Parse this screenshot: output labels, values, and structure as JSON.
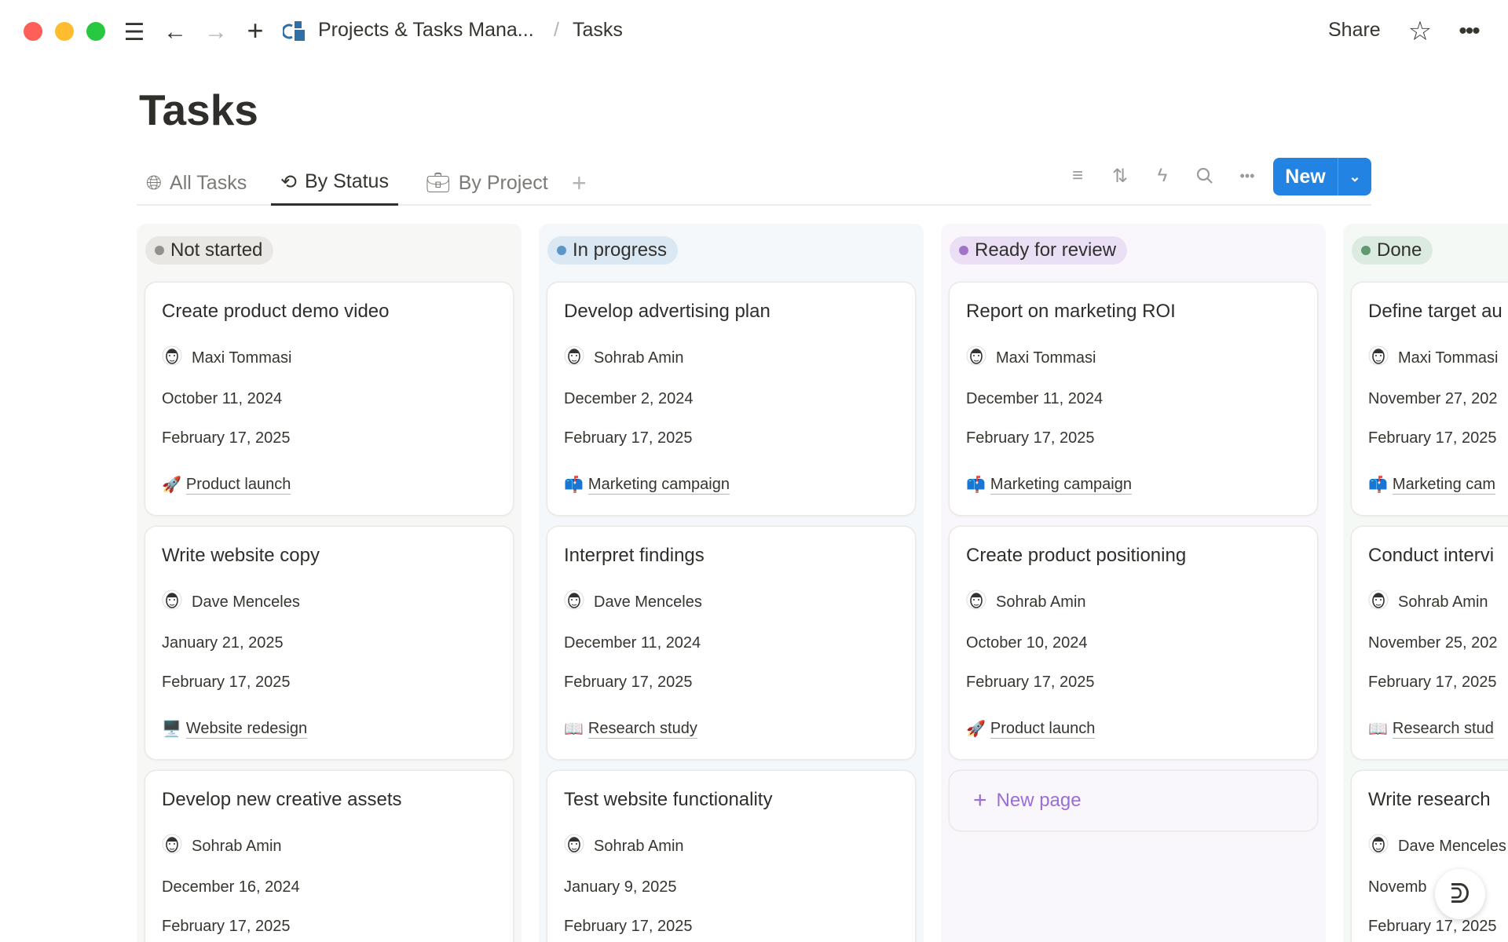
{
  "window": {
    "traffic_colors": [
      "#fe5f57",
      "#febc2e",
      "#28c840"
    ]
  },
  "breadcrumb": {
    "parent": "Projects & Tasks Mana...",
    "separator": "/",
    "current": "Tasks"
  },
  "header_actions": {
    "share": "Share"
  },
  "page": {
    "title": "Tasks"
  },
  "tabs": [
    {
      "label": "All Tasks",
      "icon": "globe-icon"
    },
    {
      "label": "By Status",
      "icon": "status-icon",
      "active": true
    },
    {
      "label": "By Project",
      "icon": "briefcase-icon"
    }
  ],
  "toolbar": {
    "new_label": "New",
    "accent": "#2383e2"
  },
  "columns": [
    {
      "status": "Not started",
      "bg": "#f7f7f5",
      "pill": "#e8e7e4",
      "dot": "#91918e",
      "cards": [
        {
          "title": "Create product demo video",
          "assignee": "Maxi Tommasi",
          "start": "October 11, 2024",
          "end": "February 17, 2025",
          "project_emoji": "🚀",
          "project": "Product launch"
        },
        {
          "title": "Write website copy",
          "assignee": "Dave Menceles",
          "start": "January 21, 2025",
          "end": "February 17, 2025",
          "project_emoji": "🖥️",
          "project": "Website redesign"
        },
        {
          "title": "Develop new creative assets",
          "assignee": "Sohrab Amin",
          "start": "December 16, 2024",
          "end": "February 17, 2025",
          "project_emoji": "",
          "project": ""
        }
      ]
    },
    {
      "status": "In progress",
      "bg": "#f4f8fb",
      "pill": "#d9e8f3",
      "dot": "#5a97c8",
      "cards": [
        {
          "title": "Develop advertising plan",
          "assignee": "Sohrab Amin",
          "start": "December 2, 2024",
          "end": "February 17, 2025",
          "project_emoji": "📫",
          "project": "Marketing campaign"
        },
        {
          "title": "Interpret findings",
          "assignee": "Dave Menceles",
          "start": "December 11, 2024",
          "end": "February 17, 2025",
          "project_emoji": "📖",
          "project": "Research study"
        },
        {
          "title": "Test website functionality",
          "assignee": "Sohrab Amin",
          "start": "January 9, 2025",
          "end": "February 17, 2025",
          "project_emoji": "",
          "project": ""
        }
      ]
    },
    {
      "status": "Ready for review",
      "bg": "#f9f7fb",
      "pill": "#eadff4",
      "dot": "#a274c8",
      "new_page": "New page",
      "cards": [
        {
          "title": "Report on marketing ROI",
          "assignee": "Maxi Tommasi",
          "start": "December 11, 2024",
          "end": "February 17, 2025",
          "project_emoji": "📫",
          "project": "Marketing campaign"
        },
        {
          "title": "Create product positioning",
          "assignee": "Sohrab Amin",
          "start": "October 10, 2024",
          "end": "February 17, 2025",
          "project_emoji": "🚀",
          "project": "Product launch"
        }
      ]
    },
    {
      "status": "Done",
      "bg": "#f5f9f6",
      "pill": "#dcebe0",
      "dot": "#5f9a6e",
      "cards": [
        {
          "title": "Define target au",
          "assignee": "Maxi Tommasi",
          "start": "November 27, 202",
          "end": "February 17, 2025",
          "project_emoji": "📫",
          "project": "Marketing cam"
        },
        {
          "title": "Conduct intervi",
          "assignee": "Sohrab Amin",
          "start": "November 25, 202",
          "end": "February 17, 2025",
          "project_emoji": "📖",
          "project": "Research stud"
        },
        {
          "title": "Write research",
          "assignee": "Dave Menceles",
          "start": "Novemb",
          "end": "February 17, 2025",
          "project_emoji": "",
          "project": ""
        }
      ]
    }
  ]
}
